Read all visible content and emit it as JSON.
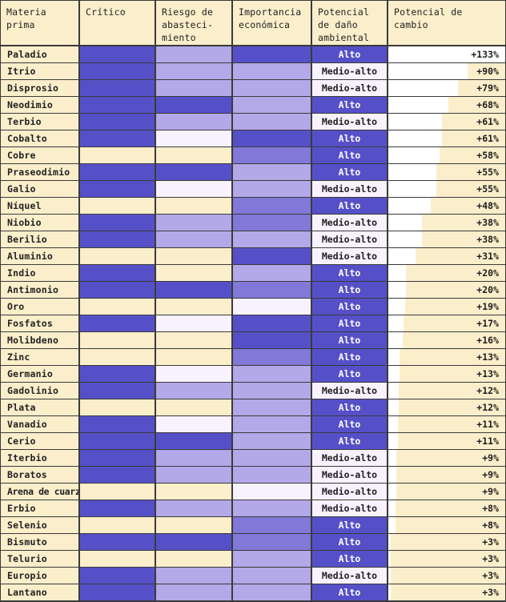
{
  "headers": {
    "materia_prima": "Materia prima",
    "critico": "Crítico",
    "riesgo": "Riesgo de abasteci-miento",
    "importancia": "Importancia económica",
    "potencial_dano": "Potencial de daño ambiental",
    "potencial_cambio": "Potencial de cambio"
  },
  "colors": {
    "background": "#fbeecb",
    "grid_line": "#3a3a3a",
    "level_high": "#5650c8",
    "level_medium": "#8178d8",
    "level_low": "#b3a8e8",
    "level_very_low": "#f8f2ff",
    "env_alto": "#5650c8",
    "env_medio_alto": "#f8f2ff",
    "change_bar": "#ffffff"
  },
  "chart_data": {
    "type": "table",
    "levels": [
      "none",
      "very_low",
      "low",
      "medium",
      "high"
    ],
    "rows": [
      {
        "material": "Paladio",
        "critico": "high",
        "riesgo": "low",
        "importancia": "high",
        "dano": "Alto",
        "cambio": 133,
        "cambio_label": "+133%"
      },
      {
        "material": "Itrio",
        "critico": "high",
        "riesgo": "low",
        "importancia": "low",
        "dano": "Medio-alto",
        "cambio": 90,
        "cambio_label": "+90%"
      },
      {
        "material": "Disprosio",
        "critico": "high",
        "riesgo": "low",
        "importancia": "low",
        "dano": "Medio-alto",
        "cambio": 79,
        "cambio_label": "+79%"
      },
      {
        "material": "Neodimio",
        "critico": "high",
        "riesgo": "high",
        "importancia": "low",
        "dano": "Alto",
        "cambio": 68,
        "cambio_label": "+68%"
      },
      {
        "material": "Terbio",
        "critico": "high",
        "riesgo": "low",
        "importancia": "low",
        "dano": "Medio-alto",
        "cambio": 61,
        "cambio_label": "+61%"
      },
      {
        "material": "Cobalto",
        "critico": "high",
        "riesgo": "very_low",
        "importancia": "high",
        "dano": "Alto",
        "cambio": 61,
        "cambio_label": "+61%"
      },
      {
        "material": "Cobre",
        "critico": "none",
        "riesgo": "none",
        "importancia": "medium",
        "dano": "Alto",
        "cambio": 58,
        "cambio_label": "+58%"
      },
      {
        "material": "Praseodimio",
        "critico": "high",
        "riesgo": "high",
        "importancia": "low",
        "dano": "Alto",
        "cambio": 55,
        "cambio_label": "+55%"
      },
      {
        "material": "Galio",
        "critico": "high",
        "riesgo": "very_low",
        "importancia": "low",
        "dano": "Medio-alto",
        "cambio": 55,
        "cambio_label": "+55%"
      },
      {
        "material": "Níquel",
        "critico": "none",
        "riesgo": "none",
        "importancia": "medium",
        "dano": "Alto",
        "cambio": 48,
        "cambio_label": "+48%"
      },
      {
        "material": "Niobio",
        "critico": "high",
        "riesgo": "low",
        "importancia": "medium",
        "dano": "Medio-alto",
        "cambio": 38,
        "cambio_label": "+38%"
      },
      {
        "material": "Berilio",
        "critico": "high",
        "riesgo": "low",
        "importancia": "low",
        "dano": "Medio-alto",
        "cambio": 38,
        "cambio_label": "+38%"
      },
      {
        "material": "Aluminio",
        "critico": "none",
        "riesgo": "none",
        "importancia": "high",
        "dano": "Medio-alto",
        "cambio": 31,
        "cambio_label": "+31%"
      },
      {
        "material": "Indio",
        "critico": "high",
        "riesgo": "none",
        "importancia": "low",
        "dano": "Alto",
        "cambio": 20,
        "cambio_label": "+20%"
      },
      {
        "material": "Antimonio",
        "critico": "high",
        "riesgo": "high",
        "importancia": "medium",
        "dano": "Alto",
        "cambio": 20,
        "cambio_label": "+20%"
      },
      {
        "material": "Oro",
        "critico": "none",
        "riesgo": "none",
        "importancia": "very_low",
        "dano": "Alto",
        "cambio": 19,
        "cambio_label": "+19%"
      },
      {
        "material": "Fosfatos",
        "critico": "high",
        "riesgo": "very_low",
        "importancia": "high",
        "dano": "Alto",
        "cambio": 17,
        "cambio_label": "+17%"
      },
      {
        "material": "Molibdeno",
        "critico": "none",
        "riesgo": "none",
        "importancia": "high",
        "dano": "Alto",
        "cambio": 16,
        "cambio_label": "+16%"
      },
      {
        "material": "Zinc",
        "critico": "none",
        "riesgo": "none",
        "importancia": "medium",
        "dano": "Alto",
        "cambio": 13,
        "cambio_label": "+13%"
      },
      {
        "material": "Germanio",
        "critico": "high",
        "riesgo": "very_low",
        "importancia": "low",
        "dano": "Alto",
        "cambio": 13,
        "cambio_label": "+13%"
      },
      {
        "material": "Gadolinio",
        "critico": "high",
        "riesgo": "low",
        "importancia": "low",
        "dano": "Medio-alto",
        "cambio": 12,
        "cambio_label": "+12%"
      },
      {
        "material": "Plata",
        "critico": "none",
        "riesgo": "none",
        "importancia": "low",
        "dano": "Alto",
        "cambio": 12,
        "cambio_label": "+12%"
      },
      {
        "material": "Vanadio",
        "critico": "high",
        "riesgo": "very_low",
        "importancia": "low",
        "dano": "Alto",
        "cambio": 11,
        "cambio_label": "+11%"
      },
      {
        "material": "Cerio",
        "critico": "high",
        "riesgo": "high",
        "importancia": "low",
        "dano": "Alto",
        "cambio": 11,
        "cambio_label": "+11%"
      },
      {
        "material": "Iterbio",
        "critico": "high",
        "riesgo": "low",
        "importancia": "low",
        "dano": "Medio-alto",
        "cambio": 9,
        "cambio_label": "+9%"
      },
      {
        "material": "Boratos",
        "critico": "high",
        "riesgo": "low",
        "importancia": "low",
        "dano": "Medio-alto",
        "cambio": 9,
        "cambio_label": "+9%"
      },
      {
        "material": "Arena de cuarzo",
        "critico": "none",
        "riesgo": "none",
        "importancia": "very_low",
        "dano": "Medio-alto",
        "cambio": 9,
        "cambio_label": "+9%"
      },
      {
        "material": "Erbio",
        "critico": "high",
        "riesgo": "low",
        "importancia": "low",
        "dano": "Medio-alto",
        "cambio": 8,
        "cambio_label": "+8%"
      },
      {
        "material": "Selenio",
        "critico": "none",
        "riesgo": "none",
        "importancia": "medium",
        "dano": "Alto",
        "cambio": 8,
        "cambio_label": "+8%"
      },
      {
        "material": "Bismuto",
        "critico": "high",
        "riesgo": "high",
        "importancia": "medium",
        "dano": "Alto",
        "cambio": 3,
        "cambio_label": "+3%"
      },
      {
        "material": "Telurio",
        "critico": "none",
        "riesgo": "none",
        "importancia": "low",
        "dano": "Alto",
        "cambio": 3,
        "cambio_label": "+3%"
      },
      {
        "material": "Europio",
        "critico": "high",
        "riesgo": "low",
        "importancia": "low",
        "dano": "Medio-alto",
        "cambio": 3,
        "cambio_label": "+3%"
      },
      {
        "material": "Lantano",
        "critico": "high",
        "riesgo": "low",
        "importancia": "low",
        "dano": "Alto",
        "cambio": 3,
        "cambio_label": "+3%"
      }
    ]
  }
}
